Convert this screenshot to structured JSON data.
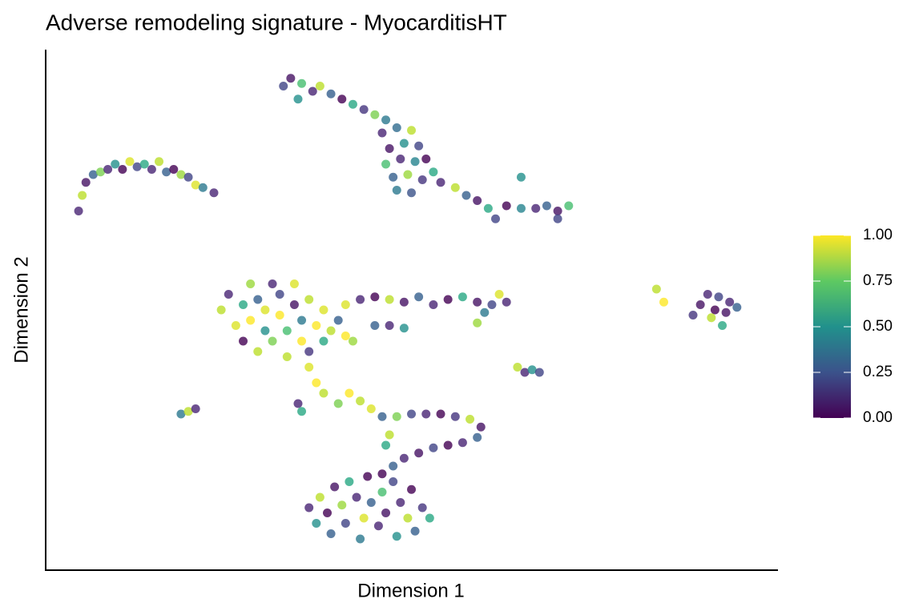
{
  "chart_data": {
    "type": "scatter",
    "title": "Adverse remodeling signature - MyocarditisHT",
    "x_label": "Dimension 1",
    "y_label": "Dimension 2",
    "xlim": [
      0,
      100
    ],
    "ylim": [
      0,
      100
    ],
    "colormap": "viridis",
    "color_lim": [
      0,
      1
    ],
    "color_ticks": [
      {
        "value": 0,
        "label": "0.00"
      },
      {
        "value": 0.25,
        "label": "0.25"
      },
      {
        "value": 0.5,
        "label": "0.50"
      },
      {
        "value": 0.75,
        "label": "0.75"
      },
      {
        "value": 1,
        "label": "1.00"
      }
    ],
    "series": [
      {
        "x": [
          4.5,
          5,
          5.5,
          6.5,
          7.5,
          8.5,
          9.5,
          10.5,
          11.5,
          12.5,
          13.5,
          14.5,
          15.5,
          16.5,
          17.5,
          18.5,
          19.5,
          20.5,
          21.5,
          23
        ],
        "y": [
          69,
          72,
          74.5,
          76,
          76.5,
          77,
          78,
          77,
          78.5,
          77.5,
          78,
          77,
          78.5,
          76.5,
          77,
          76,
          75.5,
          74,
          73.5,
          72.5
        ],
        "values": [
          0.1,
          0.9,
          0.05,
          0.3,
          0.8,
          0.1,
          0.5,
          0,
          0.95,
          0.2,
          0.6,
          0.1,
          0.9,
          0.3,
          0,
          0.85,
          0.2,
          0.95,
          0.4,
          0.1
        ]
      },
      {
        "x": [
          32.5,
          33.5,
          35,
          36.5,
          37.5,
          39,
          40.5,
          42,
          43.5,
          45,
          46.5,
          34.5,
          46,
          48,
          50,
          47,
          49,
          51,
          46.5,
          48.5,
          50.5,
          52,
          47.5,
          49.5,
          51.5,
          53,
          48,
          50,
          54,
          56,
          57.5,
          59,
          60.5,
          61.5,
          63,
          65,
          67,
          68.5,
          70,
          71.5,
          65,
          70
        ],
        "y": [
          93,
          94.5,
          93.5,
          92,
          93,
          91.5,
          90.5,
          89.5,
          88.5,
          87.5,
          86.5,
          90.5,
          84,
          85,
          84.5,
          81,
          82,
          81.5,
          78,
          79,
          78.5,
          79,
          75.5,
          76,
          75,
          76.5,
          73,
          72.5,
          74.5,
          73.5,
          72,
          71,
          69.5,
          67.5,
          70,
          69.5,
          69.5,
          70,
          69,
          70,
          75.5,
          67.5
        ],
        "values": [
          0.2,
          0.05,
          0.7,
          0.1,
          0.9,
          0.3,
          0,
          0.6,
          0.15,
          0.8,
          0.4,
          0.5,
          0.1,
          0.35,
          0.9,
          0.05,
          0.5,
          0.2,
          0.7,
          0.1,
          0.45,
          0,
          0.3,
          0.85,
          0.15,
          0.6,
          0.4,
          0.25,
          0.1,
          0.9,
          0.3,
          0.05,
          0.6,
          0.2,
          0,
          0.45,
          0.1,
          0.3,
          0.05,
          0.7,
          0.5,
          0.2
        ]
      },
      {
        "x": [
          24,
          25,
          26,
          27,
          27,
          28,
          28,
          29,
          29,
          30,
          30,
          31,
          31,
          32,
          32,
          33,
          33,
          34,
          34,
          35,
          35,
          36,
          36,
          37,
          38,
          38,
          39,
          40,
          41,
          42,
          36,
          37,
          38,
          40,
          41,
          43,
          45,
          47,
          49,
          51,
          53,
          55,
          57,
          59,
          61,
          63,
          62,
          45,
          47,
          49,
          59,
          60
        ],
        "y": [
          50,
          53,
          47,
          51,
          44,
          55,
          48,
          52,
          42,
          46,
          50,
          55,
          44,
          49,
          53,
          41,
          46,
          51,
          55,
          44,
          48,
          52,
          42,
          47,
          50,
          44,
          46,
          48,
          45,
          44,
          39,
          36,
          34,
          32,
          51,
          52,
          52.5,
          52,
          51.5,
          52.5,
          51,
          52,
          52.5,
          51.5,
          51,
          51.5,
          53,
          47,
          47,
          46.5,
          47.5,
          49.5
        ],
        "values": [
          0.9,
          0.1,
          0.95,
          0.6,
          0,
          0.85,
          1,
          0.3,
          0.9,
          0.5,
          0.95,
          0.1,
          0.8,
          1,
          0.2,
          0.9,
          0.7,
          0.05,
          0.95,
          1,
          0.4,
          0.9,
          0.15,
          1,
          0.95,
          0.6,
          0.9,
          0.3,
          1,
          0.85,
          0.95,
          1,
          0.9,
          0.8,
          0.95,
          0.1,
          0,
          0.9,
          0.05,
          0.3,
          0.1,
          0,
          0.6,
          0.05,
          0.2,
          0.1,
          0.95,
          0.3,
          0.1,
          0.5,
          0.85,
          0.4
        ]
      },
      {
        "x": [
          89.5,
          90.5,
          91.5,
          92,
          93,
          93.5,
          94.5,
          91,
          92.5,
          88.5,
          83.5,
          84.5
        ],
        "y": [
          51,
          53,
          50,
          52.5,
          49.5,
          51.5,
          50.5,
          48.5,
          47,
          49,
          54,
          51.5
        ],
        "values": [
          0.05,
          0.1,
          0,
          0.2,
          0.05,
          0.1,
          0.3,
          0.9,
          0.6,
          0.15,
          0.9,
          1
        ]
      },
      {
        "x": [
          64.5,
          65.5,
          66.5,
          67.5
        ],
        "y": [
          39,
          38,
          38.5,
          38
        ],
        "values": [
          0.9,
          0.1,
          0.5,
          0.2
        ]
      },
      {
        "x": [
          41.5,
          43,
          44.5,
          46,
          48,
          50,
          52,
          54,
          56,
          58,
          59.5,
          59,
          57,
          55,
          53,
          51,
          49,
          47.5,
          46,
          47,
          46.5
        ],
        "y": [
          34,
          32.5,
          31,
          29.5,
          29.5,
          30,
          30,
          30,
          29.5,
          29,
          27.5,
          25.5,
          24.5,
          24,
          23.5,
          22.5,
          21.5,
          20,
          18.5,
          26,
          24
        ],
        "values": [
          1,
          0.9,
          0.95,
          0.3,
          0.8,
          0.2,
          0.1,
          0,
          0.15,
          0.9,
          0.05,
          0.3,
          0.1,
          0,
          0.2,
          0.05,
          0.1,
          0.3,
          0,
          0.9,
          0.6
        ]
      },
      {
        "x": [
          36,
          37,
          37.5,
          38.5,
          39,
          39.5,
          40.5,
          41,
          41.5,
          42.5,
          43,
          43.5,
          44,
          44.5,
          45.5,
          46,
          46.5,
          47.5,
          48,
          48.5,
          49.5,
          50,
          50.5,
          51.5,
          52.5
        ],
        "y": [
          12,
          9,
          14,
          11,
          7,
          16,
          12.5,
          9,
          17,
          14,
          6,
          10,
          18,
          13,
          8.5,
          15,
          11,
          17,
          6.5,
          13,
          10,
          15.5,
          7.5,
          12,
          10
        ],
        "values": [
          0.1,
          0.5,
          0.9,
          0,
          0.3,
          0.05,
          0.85,
          0.2,
          0.6,
          0.1,
          0.4,
          0.95,
          0,
          0.3,
          0.1,
          0.7,
          0.05,
          0.2,
          0.5,
          0.1,
          0.9,
          0,
          0.3,
          0.15,
          0.6
        ]
      },
      {
        "x": [
          18.5,
          19.5,
          20.5,
          34.5,
          35
        ],
        "y": [
          30,
          30.5,
          31,
          32,
          30.5
        ],
        "values": [
          0.4,
          0.9,
          0.1,
          0.1,
          0.6
        ]
      }
    ]
  }
}
